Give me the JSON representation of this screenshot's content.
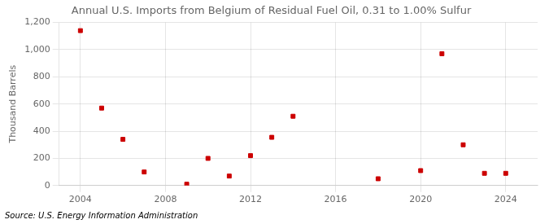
{
  "chart_data": {
    "type": "scatter",
    "title": "Annual U.S. Imports from Belgium of Residual Fuel Oil, 0.31 to 1.00% Sulfur",
    "y_label": "Thousand Barrels",
    "annotations": [
      "Source: U.S. Energy Information Administration"
    ],
    "x": [
      2004,
      2005,
      2006,
      2007,
      2009,
      2010,
      2011,
      2012,
      2013,
      2014,
      2018,
      2020,
      2021,
      2022,
      2023,
      2024
    ],
    "values": [
      1140,
      570,
      340,
      100,
      10,
      200,
      70,
      220,
      355,
      510,
      50,
      110,
      970,
      300,
      90,
      90
    ],
    "color": "#cc0000",
    "marker": "square",
    "xlim": [
      2003,
      2025.5
    ],
    "xticks": [
      2004,
      2008,
      2012,
      2016,
      2020,
      2024
    ],
    "ylim": [
      0,
      1200
    ],
    "yticks": [
      0,
      200,
      400,
      600,
      800,
      {
        "value": 1000,
        "label": "1,000"
      },
      {
        "value": 1200,
        "label": "1,200"
      }
    ],
    "grid": true
  }
}
